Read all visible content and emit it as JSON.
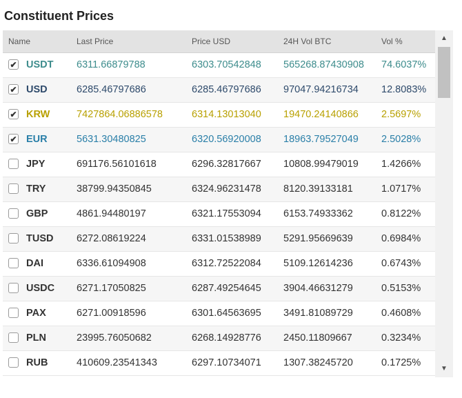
{
  "title": "Constituent Prices",
  "columns": {
    "name": "Name",
    "last_price": "Last Price",
    "price_usd": "Price USD",
    "vol_btc": "24H Vol BTC",
    "vol_pct": "Vol %"
  },
  "check_mark": "✔",
  "rows": [
    {
      "name": "USDT",
      "last": "6311.66879788",
      "usd": "6303.70542848",
      "vol": "565268.87430908",
      "pct": "74.6037%",
      "checked": true,
      "color": "#3d8c8c"
    },
    {
      "name": "USD",
      "last": "6285.46797686",
      "usd": "6285.46797686",
      "vol": "97047.94216734",
      "pct": "12.8083%",
      "checked": true,
      "color": "#2e4a6b"
    },
    {
      "name": "KRW",
      "last": "7427864.06886578",
      "usd": "6314.13013040",
      "vol": "19470.24140866",
      "pct": "2.5697%",
      "checked": true,
      "color": "#b8a000"
    },
    {
      "name": "EUR",
      "last": "5631.30480825",
      "usd": "6320.56920008",
      "vol": "18963.79527049",
      "pct": "2.5028%",
      "checked": true,
      "color": "#2a7fa8"
    },
    {
      "name": "JPY",
      "last": "691176.56101618",
      "usd": "6296.32817667",
      "vol": "10808.99479019",
      "pct": "1.4266%",
      "checked": false,
      "color": "#333333"
    },
    {
      "name": "TRY",
      "last": "38799.94350845",
      "usd": "6324.96231478",
      "vol": "8120.39133181",
      "pct": "1.0717%",
      "checked": false,
      "color": "#333333"
    },
    {
      "name": "GBP",
      "last": "4861.94480197",
      "usd": "6321.17553094",
      "vol": "6153.74933362",
      "pct": "0.8122%",
      "checked": false,
      "color": "#333333"
    },
    {
      "name": "TUSD",
      "last": "6272.08619224",
      "usd": "6331.01538989",
      "vol": "5291.95669639",
      "pct": "0.6984%",
      "checked": false,
      "color": "#333333"
    },
    {
      "name": "DAI",
      "last": "6336.61094908",
      "usd": "6312.72522084",
      "vol": "5109.12614236",
      "pct": "0.6743%",
      "checked": false,
      "color": "#333333"
    },
    {
      "name": "USDC",
      "last": "6271.17050825",
      "usd": "6287.49254645",
      "vol": "3904.46631279",
      "pct": "0.5153%",
      "checked": false,
      "color": "#333333"
    },
    {
      "name": "PAX",
      "last": "6271.00918596",
      "usd": "6301.64563695",
      "vol": "3491.81089729",
      "pct": "0.4608%",
      "checked": false,
      "color": "#333333"
    },
    {
      "name": "PLN",
      "last": "23995.76050682",
      "usd": "6268.14928776",
      "vol": "2450.11809667",
      "pct": "0.3234%",
      "checked": false,
      "color": "#333333"
    },
    {
      "name": "RUB",
      "last": "410609.23541343",
      "usd": "6297.10734071",
      "vol": "1307.38245720",
      "pct": "0.1725%",
      "checked": false,
      "color": "#333333"
    }
  ]
}
